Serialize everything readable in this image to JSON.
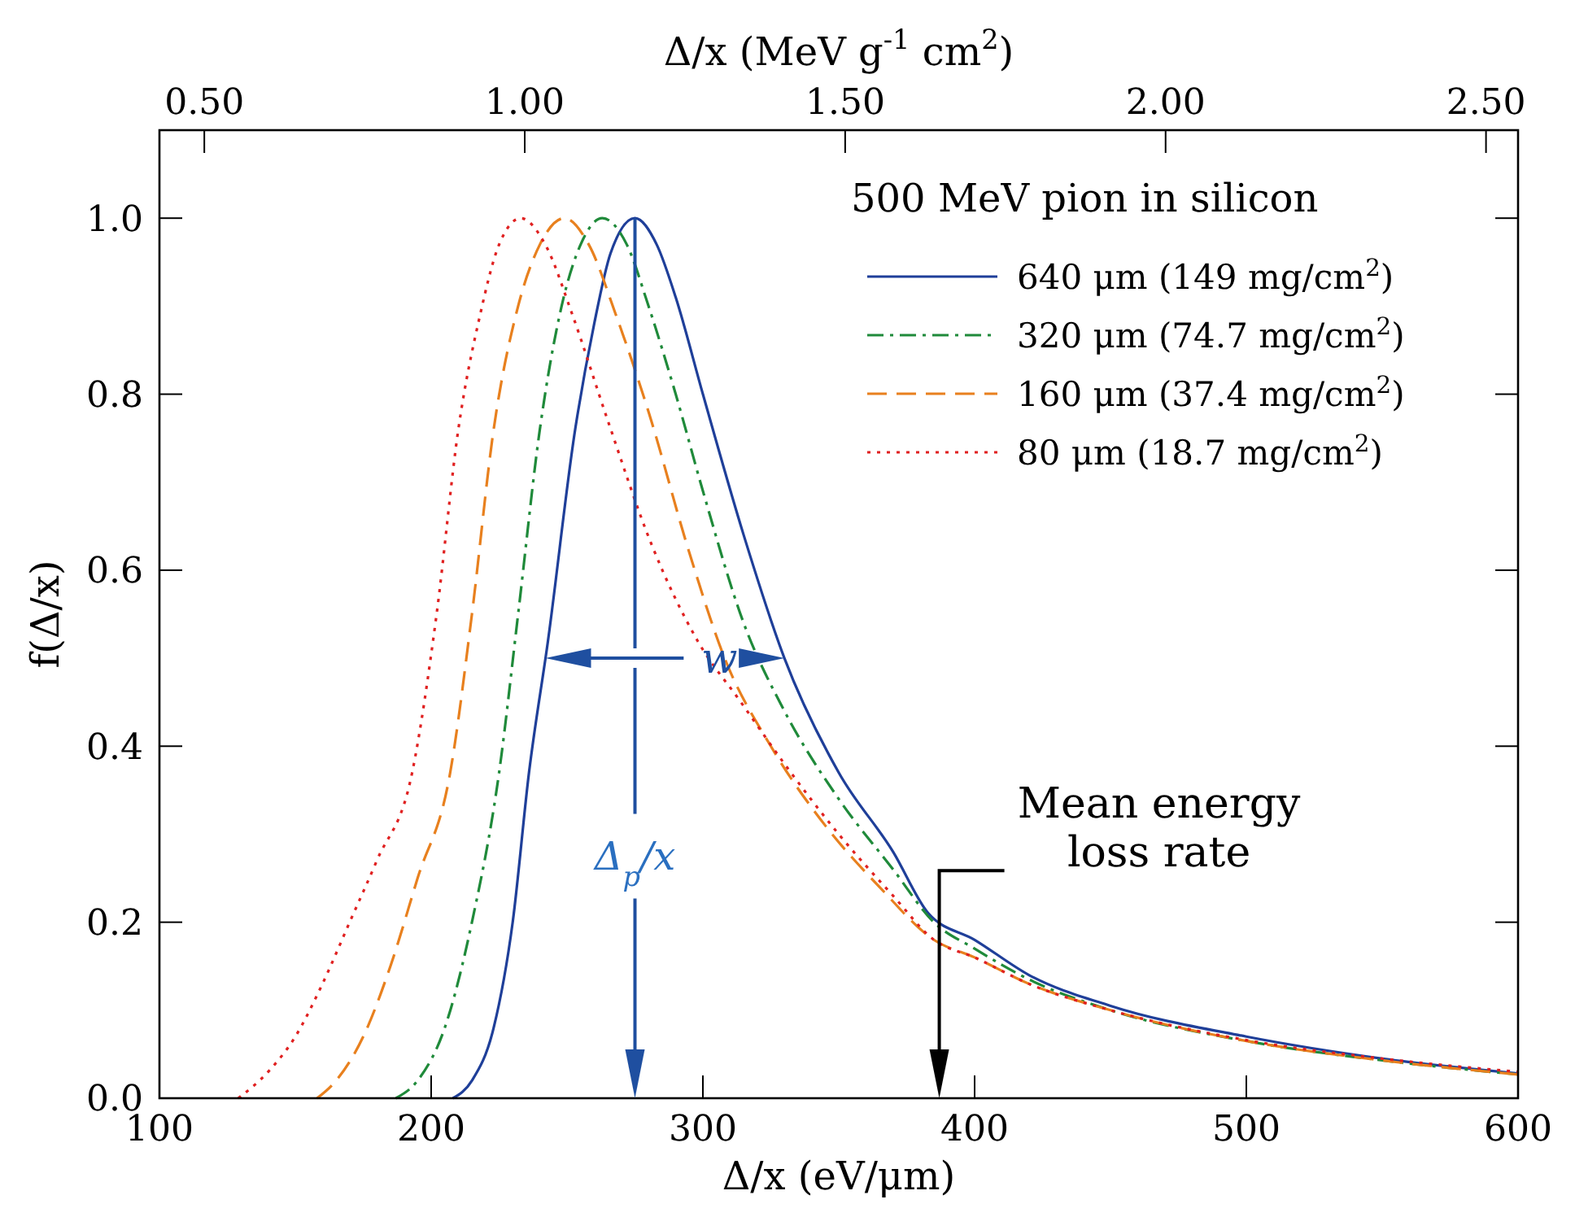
{
  "chart_data": {
    "type": "line",
    "xlabel": "Δ/x   (eV/μm)",
    "x2label": "Δ/x   (MeV g$^{-1}$ cm$^{2}$)",
    "ylabel": "f(Δ/x)",
    "legend_title": "500 MeV pion in silicon",
    "legend": "top right",
    "xlim": [
      100,
      600
    ],
    "xticks": [
      100,
      200,
      300,
      400,
      500,
      600
    ],
    "x2lim": [
      0.43,
      2.55
    ],
    "x2ticks": [
      {
        "value": 0.5,
        "label": "0.50"
      },
      {
        "value": 1.0,
        "label": "1.00"
      },
      {
        "value": 1.5,
        "label": "1.50"
      },
      {
        "value": 2.0,
        "label": "2.00"
      },
      {
        "value": 2.5,
        "label": "2.50"
      }
    ],
    "ylim": [
      0,
      1.1
    ],
    "yticks": [
      {
        "value": 0,
        "label": "0.0"
      },
      0.2,
      0.4,
      0.6,
      0.8,
      {
        "value": 1.0,
        "label": "1.0"
      }
    ],
    "marker": "none",
    "series": [
      {
        "name": "640 μm (149 mg/cm$^{2}$)",
        "color": "#1f3f99",
        "line_style": "solid",
        "x": [
          208,
          215,
          223,
          230,
          236,
          243,
          253,
          260,
          266,
          275,
          283,
          290,
          300,
          315,
          330,
          350,
          370,
          383,
          400,
          420,
          450,
          500,
          550,
          600
        ],
        "values": [
          0,
          0.02,
          0.08,
          0.2,
          0.37,
          0.52,
          0.76,
          0.88,
          0.96,
          1.0,
          0.97,
          0.91,
          0.8,
          0.64,
          0.5,
          0.37,
          0.28,
          0.21,
          0.18,
          0.14,
          0.105,
          0.07,
          0.045,
          0.028
        ]
      },
      {
        "name": "320 μm (74.7 mg/cm$^{2}$)",
        "color": "#1f8a3a",
        "line_style": "dashdot",
        "x": [
          187,
          195,
          205,
          215,
          225,
          232,
          240,
          248,
          255,
          263,
          272,
          280,
          290,
          300,
          315,
          330,
          350,
          370,
          385,
          400,
          420,
          450,
          500,
          550,
          600
        ],
        "values": [
          0,
          0.02,
          0.08,
          0.2,
          0.37,
          0.55,
          0.76,
          0.9,
          0.97,
          1.0,
          0.97,
          0.9,
          0.8,
          0.69,
          0.54,
          0.44,
          0.34,
          0.26,
          0.2,
          0.17,
          0.135,
          0.1,
          0.065,
          0.043,
          0.027
        ]
      },
      {
        "name": "160 μm (37.4 mg/cm$^{2}$)",
        "color": "#e8801e",
        "line_style": "dashed",
        "x": [
          158,
          165,
          175,
          185,
          195,
          207,
          215,
          223,
          232,
          240,
          249,
          258,
          268,
          280,
          295,
          308,
          325,
          345,
          365,
          385,
          400,
          420,
          450,
          500,
          550,
          600
        ],
        "values": [
          0,
          0.02,
          0.07,
          0.15,
          0.25,
          0.37,
          0.55,
          0.76,
          0.9,
          0.97,
          1.0,
          0.97,
          0.89,
          0.78,
          0.62,
          0.5,
          0.4,
          0.31,
          0.24,
          0.18,
          0.16,
          0.13,
          0.1,
          0.065,
          0.043,
          0.027
        ]
      },
      {
        "name": "80 μm (18.7 mg/cm$^{2}$)",
        "color": "#e02020",
        "line_style": "dotted",
        "x": [
          129,
          140,
          150,
          160,
          170,
          180,
          193,
          202,
          210,
          218,
          225,
          233,
          242,
          252,
          265,
          281,
          298,
          314,
          330,
          350,
          370,
          385,
          400,
          420,
          450,
          500,
          550,
          600
        ],
        "values": [
          0,
          0.03,
          0.07,
          0.13,
          0.2,
          0.27,
          0.37,
          0.55,
          0.76,
          0.89,
          0.97,
          1.0,
          0.97,
          0.89,
          0.77,
          0.63,
          0.52,
          0.45,
          0.38,
          0.3,
          0.23,
          0.18,
          0.16,
          0.13,
          0.1,
          0.066,
          0.045,
          0.03
        ]
      }
    ],
    "annotations": [
      "w",
      "Δ$_{p}$/x",
      "Mean energy\nloss rate"
    ]
  }
}
